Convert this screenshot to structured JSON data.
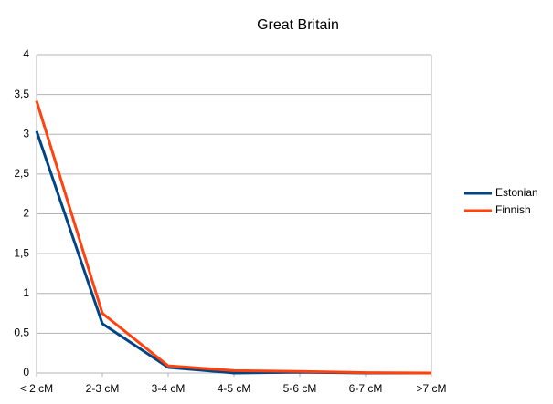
{
  "chart_data": {
    "type": "line",
    "title": "Great Britain",
    "categories": [
      "< 2 cM",
      "2-3 cM",
      "3-4 cM",
      "4-5 cM",
      "5-6 cM",
      "6-7 cM",
      ">7 cM"
    ],
    "series": [
      {
        "name": "Estonian",
        "color": "#004586",
        "values": [
          3.04,
          0.62,
          0.07,
          0.0,
          0.01,
          0.0,
          0.0
        ]
      },
      {
        "name": "Finnish",
        "color": "#ff420e",
        "values": [
          3.42,
          0.75,
          0.09,
          0.03,
          0.02,
          0.005,
          0.0
        ]
      }
    ],
    "ylim": [
      0,
      4
    ],
    "yticks": [
      0,
      {
        "value": 0.5,
        "label": "0,5"
      },
      1,
      {
        "value": 1.5,
        "label": "1,5"
      },
      2,
      {
        "value": 2.5,
        "label": "2,5"
      },
      3,
      {
        "value": 3.5,
        "label": "3,5"
      },
      4
    ],
    "grid": true,
    "legend": "right"
  }
}
